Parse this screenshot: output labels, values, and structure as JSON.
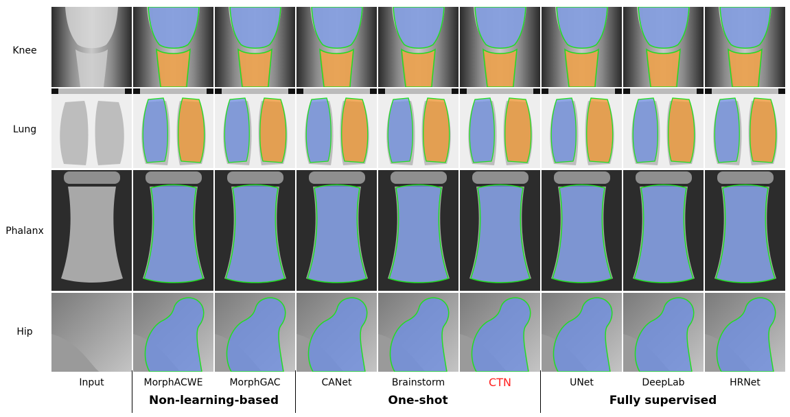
{
  "rows": [
    {
      "key": "knee",
      "label": "Knee"
    },
    {
      "key": "lung",
      "label": "Lung"
    },
    {
      "key": "phalanx",
      "label": "Phalanx"
    },
    {
      "key": "hip",
      "label": "Hip"
    }
  ],
  "columns": [
    {
      "key": "input",
      "label": "Input",
      "highlight": false
    },
    {
      "key": "morphacwe",
      "label": "MorphACWE",
      "highlight": false
    },
    {
      "key": "morphgac",
      "label": "MorphGAC",
      "highlight": false
    },
    {
      "key": "canet",
      "label": "CANet",
      "highlight": false
    },
    {
      "key": "brainstorm",
      "label": "Brainstorm",
      "highlight": false
    },
    {
      "key": "ctn",
      "label": "CTN",
      "highlight": true
    },
    {
      "key": "unet",
      "label": "UNet",
      "highlight": false
    },
    {
      "key": "deeplab",
      "label": "DeepLab",
      "highlight": false
    },
    {
      "key": "hrnet",
      "label": "HRNet",
      "highlight": false
    }
  ],
  "groups": [
    {
      "label": "Non-learning-based"
    },
    {
      "label": "One-shot"
    },
    {
      "label": "Fully supervised"
    }
  ],
  "colors": {
    "mask_primary": "#6f8fe0",
    "mask_secondary": "#f0962f",
    "contour": "#22dd22",
    "highlight_text": "#ff2020"
  }
}
